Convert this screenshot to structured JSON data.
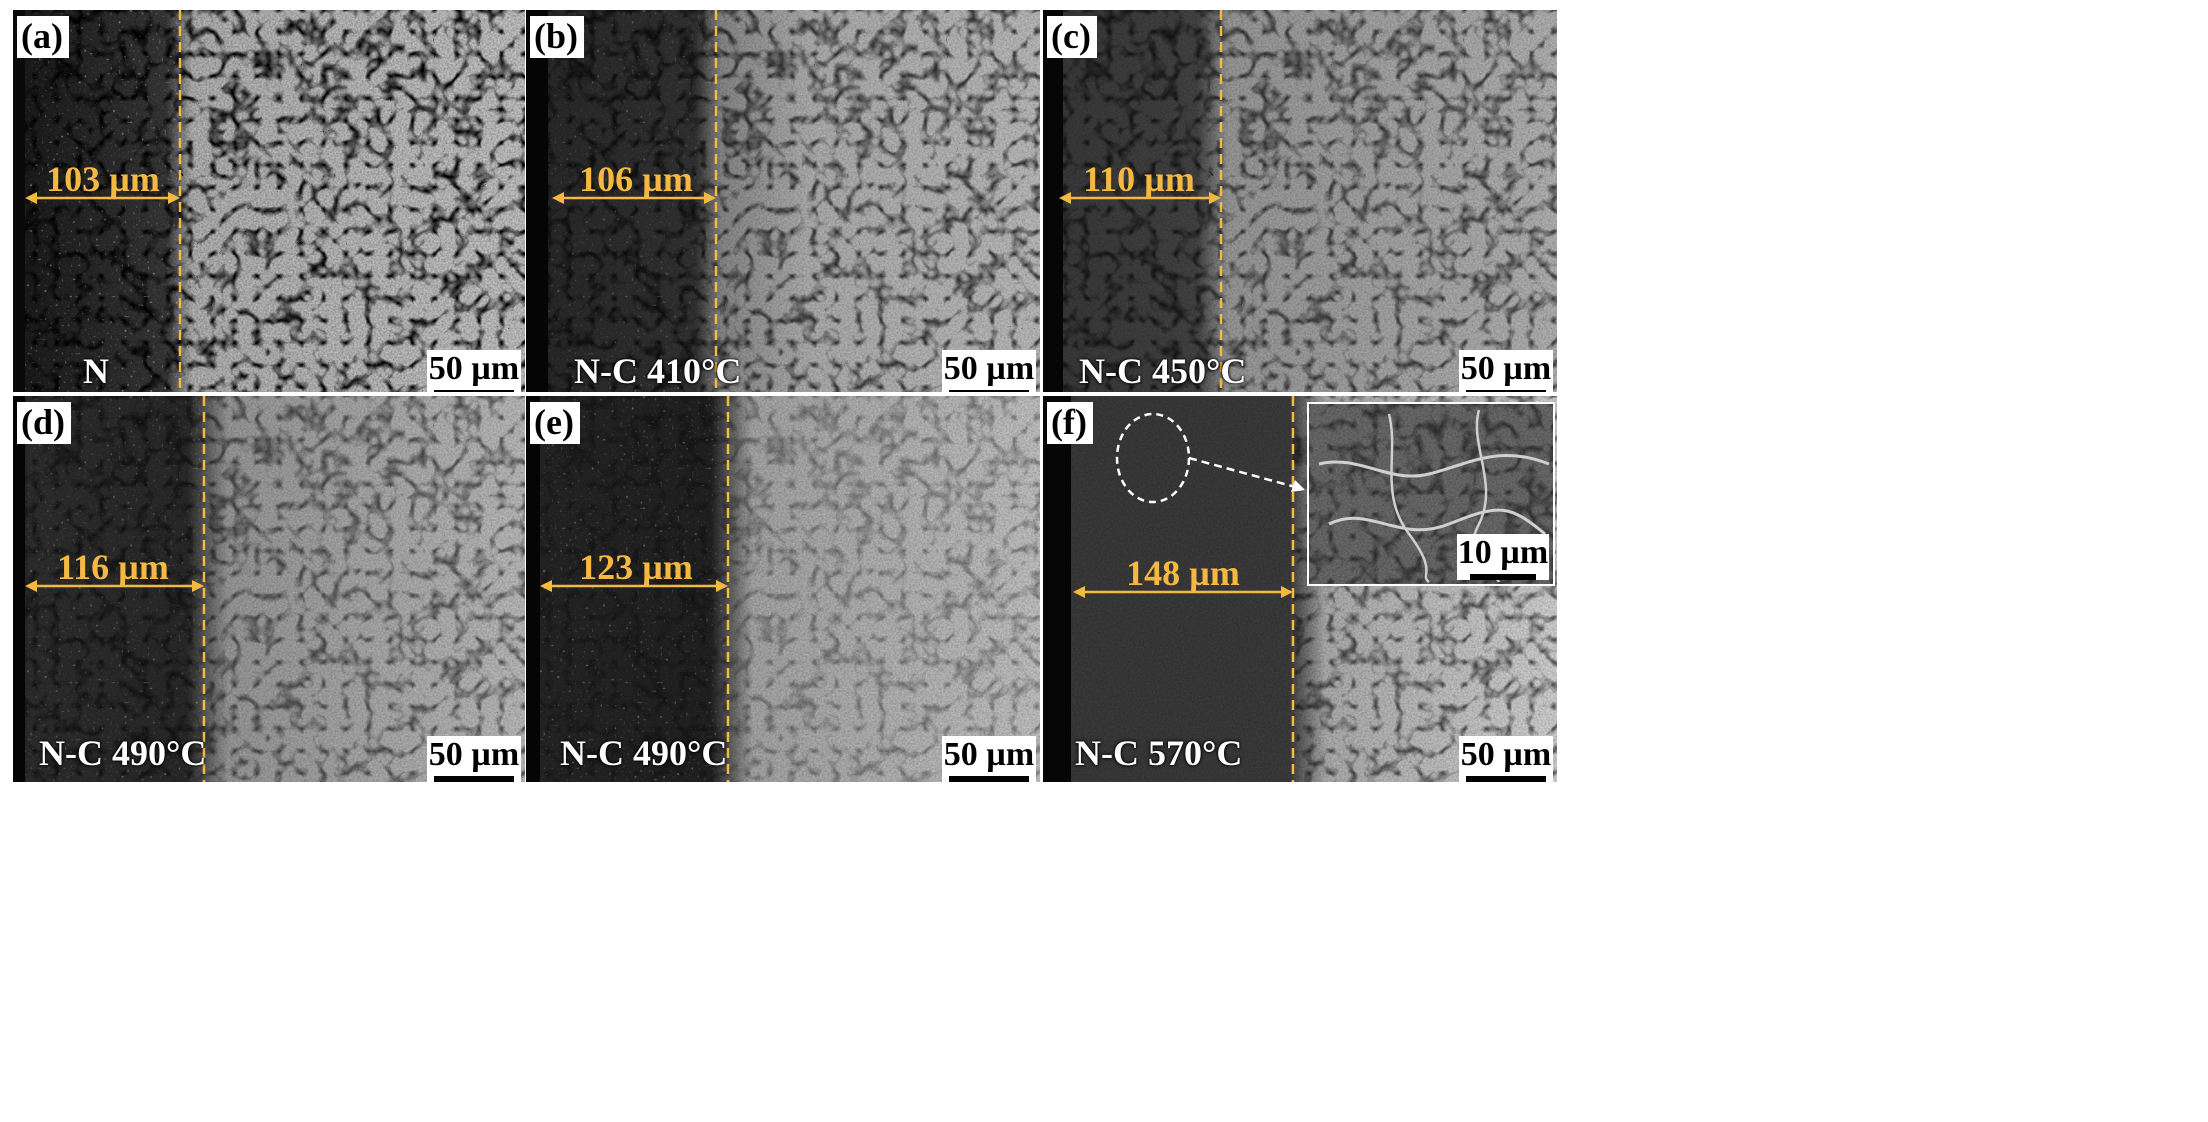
{
  "figure": {
    "panels": [
      {
        "tag": "(a)",
        "sample": "N",
        "depth": "103 µm",
        "scale": "50 µm"
      },
      {
        "tag": "(b)",
        "sample": "N-C 410°C",
        "depth": "106 µm",
        "scale": "50 µm"
      },
      {
        "tag": "(c)",
        "sample": "N-C 450°C",
        "depth": "110 µm",
        "scale": "50 µm"
      },
      {
        "tag": "(d)",
        "sample": "N-C 490°C",
        "depth": "116 µm",
        "scale": "50 µm"
      },
      {
        "tag": "(e)",
        "sample": "N-C 490°C",
        "depth": "123 µm",
        "scale": "50 µm"
      },
      {
        "tag": "(f)",
        "sample": "N-C 570°C",
        "depth": "148 µm",
        "scale": "50 µm",
        "inset_scale": "10 µm"
      }
    ],
    "colors": {
      "measurement": "#f5b942",
      "boundary_line": "#f5b942",
      "label_box": "#ffffff"
    }
  }
}
